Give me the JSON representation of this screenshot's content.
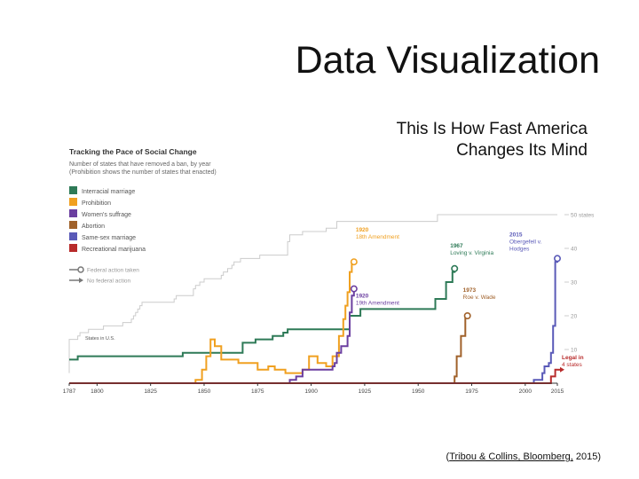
{
  "slide": {
    "title": "Data Visualization",
    "subtitle_line1": "This Is How Fast America",
    "subtitle_line2": "Changes Its Mind",
    "citation_open": "(",
    "citation_link": "Tribou & Collins, Bloomberg,",
    "citation_close": " 2015)"
  },
  "chart_data": {
    "type": "line",
    "title": "Tracking the Pace of Social Change",
    "subtitle_line1": "Number of states that have removed a ban, by year",
    "subtitle_line2": "(Prohibition shows the number of states that enacted)",
    "x_ticks": [
      1787,
      1800,
      1825,
      1850,
      1875,
      1900,
      1925,
      1950,
      1975,
      2000,
      2015
    ],
    "xlim": [
      1787,
      2015
    ],
    "ylim": [
      0,
      50
    ],
    "y_ticks": [
      {
        "value": 10,
        "label": "10"
      },
      {
        "value": 20,
        "label": "20"
      },
      {
        "value": 30,
        "label": "30"
      },
      {
        "value": 40,
        "label": "40"
      },
      {
        "value": 50,
        "label": "50 states"
      }
    ],
    "states_in_us_label": "States in U.S.",
    "legend_marker_labels": {
      "federal": "Federal action taken",
      "none": "No federal action"
    },
    "colors": {
      "states": "#cccccc",
      "axis": "#333333",
      "tick_label": "#999999",
      "title": "#333333"
    },
    "series": [
      {
        "name": "Interracial marriage",
        "color": "#2e7a57",
        "points": [
          [
            1787,
            7
          ],
          [
            1791,
            7
          ],
          [
            1791,
            8
          ],
          [
            1840,
            8
          ],
          [
            1840,
            9
          ],
          [
            1868,
            9
          ],
          [
            1868,
            12
          ],
          [
            1874,
            12
          ],
          [
            1874,
            13
          ],
          [
            1882,
            13
          ],
          [
            1882,
            14
          ],
          [
            1887,
            14
          ],
          [
            1887,
            15
          ],
          [
            1889,
            15
          ],
          [
            1889,
            16
          ],
          [
            1918,
            16
          ],
          [
            1918,
            20
          ],
          [
            1923,
            20
          ],
          [
            1923,
            22
          ],
          [
            1958,
            22
          ],
          [
            1958,
            25
          ],
          [
            1963,
            25
          ],
          [
            1963,
            30
          ],
          [
            1966,
            30
          ],
          [
            1966,
            33
          ],
          [
            1967,
            33
          ],
          [
            1967,
            34
          ]
        ]
      },
      {
        "name": "Prohibition",
        "color": "#f0a020",
        "points": [
          [
            1787,
            0
          ],
          [
            1846,
            0
          ],
          [
            1846,
            1
          ],
          [
            1849,
            1
          ],
          [
            1849,
            4
          ],
          [
            1851,
            4
          ],
          [
            1851,
            8
          ],
          [
            1853,
            8
          ],
          [
            1853,
            13
          ],
          [
            1855,
            13
          ],
          [
            1855,
            11
          ],
          [
            1858,
            11
          ],
          [
            1858,
            7
          ],
          [
            1866,
            7
          ],
          [
            1866,
            6
          ],
          [
            1875,
            6
          ],
          [
            1875,
            4
          ],
          [
            1880,
            4
          ],
          [
            1880,
            5
          ],
          [
            1883,
            5
          ],
          [
            1883,
            4
          ],
          [
            1888,
            4
          ],
          [
            1888,
            3
          ],
          [
            1896,
            3
          ],
          [
            1896,
            4
          ],
          [
            1899,
            4
          ],
          [
            1899,
            8
          ],
          [
            1903,
            8
          ],
          [
            1903,
            6
          ],
          [
            1907,
            6
          ],
          [
            1907,
            5
          ],
          [
            1910,
            5
          ],
          [
            1910,
            8
          ],
          [
            1913,
            8
          ],
          [
            1913,
            14
          ],
          [
            1915,
            14
          ],
          [
            1915,
            19
          ],
          [
            1916,
            19
          ],
          [
            1916,
            23
          ],
          [
            1917,
            23
          ],
          [
            1917,
            27
          ],
          [
            1918,
            27
          ],
          [
            1918,
            33
          ],
          [
            1919,
            33
          ],
          [
            1919,
            36
          ],
          [
            1920,
            36
          ]
        ]
      },
      {
        "name": "Women's suffrage",
        "color": "#6b3fa0",
        "points": [
          [
            1787,
            0
          ],
          [
            1890,
            0
          ],
          [
            1890,
            1
          ],
          [
            1893,
            1
          ],
          [
            1893,
            2
          ],
          [
            1896,
            2
          ],
          [
            1896,
            4
          ],
          [
            1910,
            4
          ],
          [
            1910,
            5
          ],
          [
            1911,
            5
          ],
          [
            1911,
            6
          ],
          [
            1912,
            6
          ],
          [
            1912,
            9
          ],
          [
            1914,
            9
          ],
          [
            1914,
            11
          ],
          [
            1917,
            11
          ],
          [
            1917,
            14
          ],
          [
            1918,
            14
          ],
          [
            1918,
            21
          ],
          [
            1919,
            21
          ],
          [
            1919,
            26
          ],
          [
            1920,
            26
          ],
          [
            1920,
            28
          ]
        ]
      },
      {
        "name": "Abortion",
        "color": "#a0612a",
        "points": [
          [
            1787,
            0
          ],
          [
            1967,
            0
          ],
          [
            1967,
            2
          ],
          [
            1968,
            2
          ],
          [
            1968,
            8
          ],
          [
            1970,
            8
          ],
          [
            1970,
            14
          ],
          [
            1972,
            14
          ],
          [
            1972,
            20
          ],
          [
            1973,
            20
          ]
        ]
      },
      {
        "name": "Same-sex marriage",
        "color": "#5a5ab8",
        "points": [
          [
            1787,
            0
          ],
          [
            2004,
            0
          ],
          [
            2004,
            1
          ],
          [
            2008,
            1
          ],
          [
            2008,
            3
          ],
          [
            2009,
            3
          ],
          [
            2009,
            5
          ],
          [
            2011,
            5
          ],
          [
            2011,
            6
          ],
          [
            2012,
            6
          ],
          [
            2012,
            9
          ],
          [
            2013,
            9
          ],
          [
            2013,
            17
          ],
          [
            2014,
            17
          ],
          [
            2014,
            36
          ],
          [
            2015,
            36
          ],
          [
            2015,
            37
          ]
        ]
      },
      {
        "name": "Recreational marijuana",
        "color": "#b82b2b",
        "points": [
          [
            1787,
            0
          ],
          [
            2012,
            0
          ],
          [
            2012,
            2
          ],
          [
            2014,
            2
          ],
          [
            2014,
            4
          ],
          [
            2015,
            4
          ]
        ]
      }
    ],
    "states_in_us_points": [
      [
        1787,
        3
      ],
      [
        1787,
        13
      ],
      [
        1791,
        13
      ],
      [
        1791,
        14
      ],
      [
        1792,
        14
      ],
      [
        1792,
        15
      ],
      [
        1796,
        15
      ],
      [
        1796,
        16
      ],
      [
        1803,
        16
      ],
      [
        1803,
        17
      ],
      [
        1812,
        17
      ],
      [
        1812,
        18
      ],
      [
        1816,
        18
      ],
      [
        1816,
        19
      ],
      [
        1817,
        19
      ],
      [
        1817,
        20
      ],
      [
        1818,
        20
      ],
      [
        1818,
        21
      ],
      [
        1819,
        21
      ],
      [
        1819,
        22
      ],
      [
        1820,
        22
      ],
      [
        1820,
        23
      ],
      [
        1821,
        23
      ],
      [
        1821,
        24
      ],
      [
        1836,
        24
      ],
      [
        1836,
        25
      ],
      [
        1837,
        25
      ],
      [
        1837,
        26
      ],
      [
        1845,
        26
      ],
      [
        1845,
        28
      ],
      [
        1846,
        28
      ],
      [
        1846,
        29
      ],
      [
        1848,
        29
      ],
      [
        1848,
        30
      ],
      [
        1850,
        30
      ],
      [
        1850,
        31
      ],
      [
        1858,
        31
      ],
      [
        1858,
        32
      ],
      [
        1859,
        32
      ],
      [
        1859,
        33
      ],
      [
        1861,
        33
      ],
      [
        1861,
        34
      ],
      [
        1863,
        34
      ],
      [
        1863,
        35
      ],
      [
        1864,
        35
      ],
      [
        1864,
        36
      ],
      [
        1867,
        36
      ],
      [
        1867,
        37
      ],
      [
        1876,
        37
      ],
      [
        1876,
        38
      ],
      [
        1889,
        38
      ],
      [
        1889,
        42
      ],
      [
        1890,
        42
      ],
      [
        1890,
        44
      ],
      [
        1896,
        44
      ],
      [
        1896,
        45
      ],
      [
        1907,
        45
      ],
      [
        1907,
        46
      ],
      [
        1912,
        46
      ],
      [
        1912,
        48
      ],
      [
        1959,
        48
      ],
      [
        1959,
        50
      ],
      [
        2015,
        50
      ]
    ],
    "annotations": [
      {
        "series": "Prohibition",
        "year": 1920,
        "value": 36,
        "label1": "1920",
        "label2": "18th Amendment",
        "marker": "federal"
      },
      {
        "series": "Women's suffrage",
        "year": 1920,
        "value": 28,
        "label1": "1920",
        "label2": "19th Amendment",
        "marker": "federal"
      },
      {
        "series": "Interracial marriage",
        "year": 1967,
        "value": 34,
        "label1": "1967",
        "label2": "Loving v. Virginia",
        "marker": "federal"
      },
      {
        "series": "Abortion",
        "year": 1973,
        "value": 20,
        "label1": "1973",
        "label2": "Roe v. Wade",
        "marker": "federal"
      },
      {
        "series": "Same-sex marriage",
        "year": 2015,
        "value": 37,
        "label1": "2015",
        "label2": "Obergefell v.",
        "label3": "Hodges",
        "marker": "federal"
      },
      {
        "series": "Recreational marijuana",
        "year": 2015,
        "value": 4,
        "label1": "Legal in",
        "label2": "4 states",
        "marker": "none"
      }
    ]
  }
}
